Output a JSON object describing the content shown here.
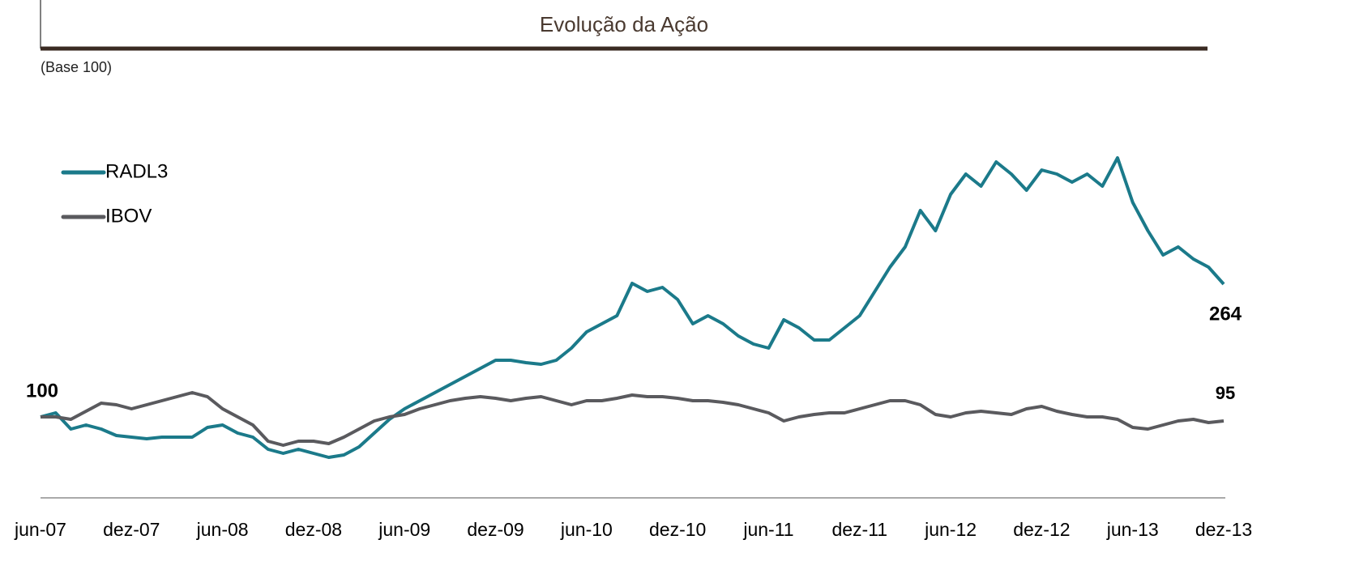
{
  "chart_data": {
    "type": "line",
    "title": "Evolução da Ação",
    "subtitle": "(Base 100)",
    "x": [
      0,
      1,
      2,
      3,
      4,
      5,
      6,
      7,
      8,
      9,
      10,
      11,
      12,
      13,
      14,
      15,
      16,
      17,
      18,
      19,
      20,
      21,
      22,
      23,
      24,
      25,
      26,
      27,
      28,
      29,
      30,
      31,
      32,
      33,
      34,
      35,
      36,
      37,
      38,
      39,
      40,
      41,
      42,
      43,
      44,
      45,
      46,
      47,
      48,
      49,
      50,
      51,
      52,
      53,
      54,
      55,
      56,
      57,
      58,
      59,
      60,
      61,
      62,
      63,
      64,
      65,
      66,
      67,
      68,
      69,
      70,
      71,
      72,
      73,
      74,
      75,
      76,
      77,
      78
    ],
    "xlim": [
      0,
      78
    ],
    "xticks": [
      {
        "value": 0,
        "label": "jun-07"
      },
      {
        "value": 6,
        "label": "dez-07"
      },
      {
        "value": 12,
        "label": "jun-08"
      },
      {
        "value": 18,
        "label": "dez-08"
      },
      {
        "value": 24,
        "label": "jun-09"
      },
      {
        "value": 30,
        "label": "dez-09"
      },
      {
        "value": 36,
        "label": "jun-10"
      },
      {
        "value": 42,
        "label": "dez-10"
      },
      {
        "value": 48,
        "label": "jun-11"
      },
      {
        "value": 54,
        "label": "dez-11"
      },
      {
        "value": 60,
        "label": "jun-12"
      },
      {
        "value": 66,
        "label": "dez-12"
      },
      {
        "value": 72,
        "label": "jun-13"
      },
      {
        "value": 78,
        "label": "dez-13"
      }
    ],
    "ylim": [
      0,
      500
    ],
    "legend": "top-left",
    "series": [
      {
        "name": "RADL3",
        "color": "#1b7a8a",
        "values": [
          100,
          105,
          85,
          90,
          85,
          77,
          75,
          73,
          75,
          75,
          75,
          87,
          90,
          80,
          75,
          60,
          55,
          60,
          55,
          50,
          53,
          63,
          80,
          97,
          110,
          120,
          130,
          140,
          150,
          160,
          170,
          170,
          167,
          165,
          170,
          185,
          205,
          215,
          225,
          265,
          255,
          260,
          245,
          215,
          225,
          215,
          200,
          190,
          185,
          220,
          210,
          195,
          195,
          210,
          225,
          255,
          285,
          310,
          355,
          330,
          375,
          400,
          385,
          415,
          400,
          380,
          405,
          400,
          390,
          400,
          385,
          420,
          365,
          330,
          300,
          310,
          295,
          285,
          264
        ]
      },
      {
        "name": "IBOV",
        "color": "#5a5a5e",
        "values": [
          100,
          100,
          97,
          107,
          117,
          115,
          110,
          115,
          120,
          125,
          130,
          125,
          110,
          100,
          90,
          70,
          65,
          70,
          70,
          67,
          75,
          85,
          95,
          100,
          103,
          110,
          115,
          120,
          123,
          125,
          123,
          120,
          123,
          125,
          120,
          115,
          120,
          120,
          123,
          127,
          125,
          125,
          123,
          120,
          120,
          118,
          115,
          110,
          105,
          95,
          100,
          103,
          105,
          105,
          110,
          115,
          120,
          120,
          115,
          103,
          100,
          105,
          107,
          105,
          103,
          110,
          113,
          107,
          103,
          100,
          100,
          97,
          87,
          85,
          90,
          95,
          97,
          93,
          95
        ]
      }
    ]
  }
}
